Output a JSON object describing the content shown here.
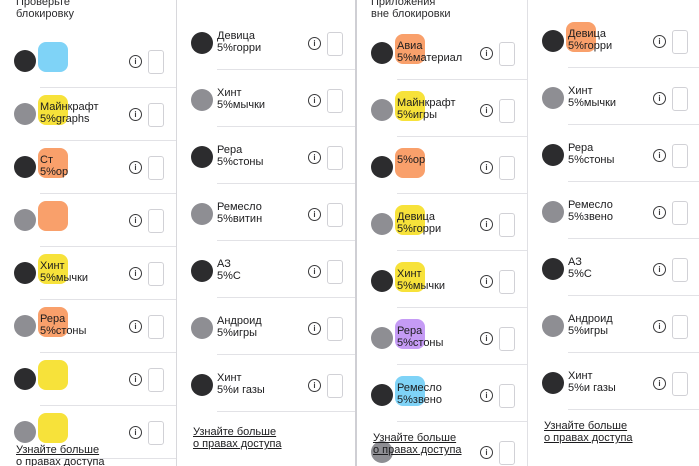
{
  "columns": [
    {
      "top_text": "Проверьте\nблокировку",
      "rows": [
        {
          "num": "",
          "label": "",
          "icon_color": "#7fd3f7"
        },
        {
          "num": "",
          "label": "Майнкрафт\n5%graphs",
          "icon_color": "#f7e23a"
        },
        {
          "num": "",
          "label": "Ст\n5%ор",
          "icon_color": "#f9a06b"
        },
        {
          "num": "",
          "label": "",
          "icon_color": "#f9a06b"
        },
        {
          "num": "",
          "label": "Хинт\n5%мычки",
          "icon_color": "#f7e23a"
        },
        {
          "num": "",
          "label": "Рерa\n5%стоны",
          "icon_color": "#f9a06b"
        },
        {
          "num": "",
          "label": "",
          "icon_color": "#f7e23a"
        },
        {
          "num": "",
          "label": "",
          "icon_color": "#f7e23a"
        }
      ],
      "bottom_text": "Узнайте больше\nо правах доступа"
    },
    {
      "top_text": "",
      "rows": [
        {
          "num": "",
          "label": "Девица\n5%горри",
          "icon_color": ""
        },
        {
          "num": "",
          "label": "Хинт\n5%мычки",
          "icon_color": ""
        },
        {
          "num": "",
          "label": "Рерa\n5%стоны",
          "icon_color": ""
        },
        {
          "num": "",
          "label": "Ремесло\n5%витин",
          "icon_color": ""
        },
        {
          "num": "",
          "label": "АЗ\n5%С",
          "icon_color": ""
        },
        {
          "num": "",
          "label": "Андроид\n5%игры",
          "icon_color": ""
        },
        {
          "num": "",
          "label": "Хинт\n5%и газы",
          "icon_color": ""
        }
      ],
      "bottom_text": "Узнайте больше\nо правах доступа"
    },
    {
      "top_text": "Приложения\nвне блокировки",
      "rows": [
        {
          "num": "",
          "label": "Авиа\n5%материал",
          "icon_color": "#f9a06b"
        },
        {
          "num": "",
          "label": "Майнкрафт\n5%игры",
          "icon_color": "#f7e23a"
        },
        {
          "num": "",
          "label": "5%ор",
          "icon_color": "#f9a06b"
        },
        {
          "num": "",
          "label": "Девица\n5%горри",
          "icon_color": "#f7e23a"
        },
        {
          "num": "",
          "label": "Хинт\n5%мычки",
          "icon_color": "#f7e23a"
        },
        {
          "num": "",
          "label": "Рерa\n5%стоны",
          "icon_color": "#c59bf5"
        },
        {
          "num": "",
          "label": "Ремесло\n5%звено",
          "icon_color": "#7fd3f7"
        },
        {
          "num": "",
          "label": "",
          "icon_color": ""
        }
      ],
      "bottom_text": "Узнайте больше\nо правах доступа"
    },
    {
      "top_text": "",
      "rows": [
        {
          "num": "",
          "label": "Девица\n5%горри",
          "icon_color": "#f9a06b"
        },
        {
          "num": "",
          "label": "Хинт\n5%мычки",
          "icon_color": ""
        },
        {
          "num": "",
          "label": "Рерa\n5%стоны",
          "icon_color": ""
        },
        {
          "num": "",
          "label": "Ремесло\n5%звено",
          "icon_color": ""
        },
        {
          "num": "",
          "label": "АЗ\n5%С",
          "icon_color": ""
        },
        {
          "num": "",
          "label": "Андроид\n5%игры",
          "icon_color": ""
        },
        {
          "num": "",
          "label": "Хинт\n5%и газы",
          "icon_color": ""
        }
      ],
      "bottom_text": "Узнайте больше\nо правах доступа"
    }
  ],
  "info_glyph": "i"
}
